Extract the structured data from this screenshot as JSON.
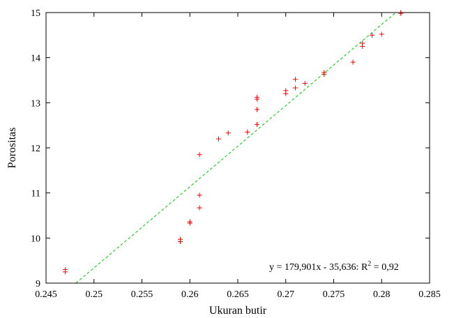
{
  "chart_data": {
    "type": "scatter",
    "xlabel": "Ukuran butir",
    "ylabel": "Porositas",
    "xlim": [
      0.245,
      0.285
    ],
    "ylim": [
      9,
      15
    ],
    "xticks": [
      "0.245",
      "0.25",
      "0.255",
      "0.26",
      "0.265",
      "0.27",
      "0.275",
      "0.28",
      "0.285"
    ],
    "yticks": [
      "9",
      "10",
      "11",
      "12",
      "13",
      "14",
      "15"
    ],
    "grid": false,
    "points": [
      {
        "x": 0.247,
        "y": 9.3
      },
      {
        "x": 0.247,
        "y": 9.25
      },
      {
        "x": 0.259,
        "y": 9.97
      },
      {
        "x": 0.259,
        "y": 9.92
      },
      {
        "x": 0.26,
        "y": 10.36
      },
      {
        "x": 0.26,
        "y": 10.33
      },
      {
        "x": 0.261,
        "y": 10.67
      },
      {
        "x": 0.261,
        "y": 10.95
      },
      {
        "x": 0.261,
        "y": 11.85
      },
      {
        "x": 0.263,
        "y": 12.2
      },
      {
        "x": 0.264,
        "y": 12.33
      },
      {
        "x": 0.266,
        "y": 12.35
      },
      {
        "x": 0.267,
        "y": 12.52
      },
      {
        "x": 0.267,
        "y": 12.85
      },
      {
        "x": 0.267,
        "y": 13.08
      },
      {
        "x": 0.267,
        "y": 13.12
      },
      {
        "x": 0.27,
        "y": 13.2
      },
      {
        "x": 0.27,
        "y": 13.27
      },
      {
        "x": 0.271,
        "y": 13.33
      },
      {
        "x": 0.271,
        "y": 13.52
      },
      {
        "x": 0.272,
        "y": 13.43
      },
      {
        "x": 0.274,
        "y": 13.63
      },
      {
        "x": 0.274,
        "y": 13.67
      },
      {
        "x": 0.277,
        "y": 13.9
      },
      {
        "x": 0.278,
        "y": 14.25
      },
      {
        "x": 0.278,
        "y": 14.32
      },
      {
        "x": 0.279,
        "y": 14.5
      },
      {
        "x": 0.28,
        "y": 14.52
      },
      {
        "x": 0.282,
        "y": 14.98
      },
      {
        "x": 0.282,
        "y": 15.0
      }
    ],
    "trendline": {
      "slope": 179.901,
      "intercept": -35.636
    },
    "equation": {
      "main": "y = 179,901x - 35,636: R",
      "superscript": "2",
      "tail": " = 0,92"
    },
    "colors": {
      "points": "#ff0000",
      "trendline": "#00cc00"
    }
  }
}
